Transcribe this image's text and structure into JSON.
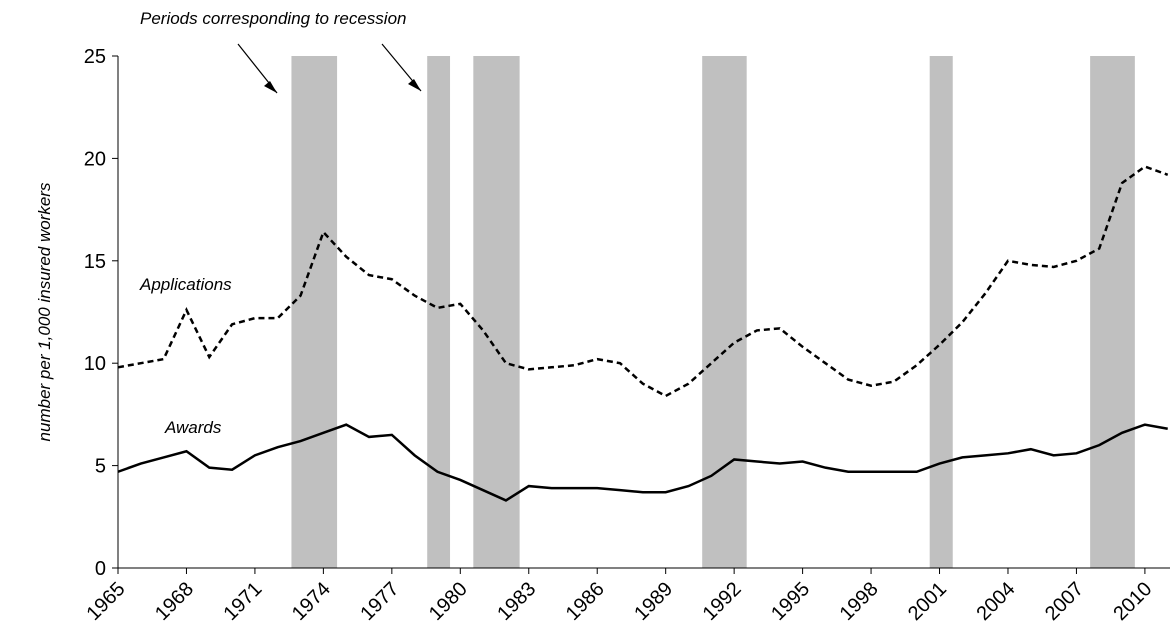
{
  "chart_data": {
    "type": "line",
    "annotation": "Periods corresponding to recession",
    "y_label": "number per 1,000 insured workers",
    "x": [
      1965,
      1966,
      1967,
      1968,
      1969,
      1970,
      1971,
      1972,
      1973,
      1974,
      1975,
      1976,
      1977,
      1978,
      1979,
      1980,
      1981,
      1982,
      1983,
      1984,
      1985,
      1986,
      1987,
      1988,
      1989,
      1990,
      1991,
      1992,
      1993,
      1994,
      1995,
      1996,
      1997,
      1998,
      1999,
      2000,
      2001,
      2002,
      2003,
      2004,
      2005,
      2006,
      2007,
      2008,
      2009,
      2010,
      2011
    ],
    "series": [
      {
        "name": "Applications",
        "color": "#000000",
        "line_style": "dashed",
        "values": [
          9.8,
          10.0,
          10.2,
          12.6,
          10.3,
          11.9,
          12.2,
          12.2,
          13.3,
          16.4,
          15.2,
          14.3,
          14.1,
          13.3,
          12.7,
          12.9,
          11.6,
          10.0,
          9.7,
          9.8,
          9.9,
          10.2,
          10.0,
          9.0,
          8.4,
          9.0,
          10.0,
          11.0,
          11.6,
          11.7,
          10.8,
          10.0,
          9.2,
          8.9,
          9.1,
          9.9,
          10.9,
          12.0,
          13.4,
          15.0,
          14.8,
          14.7,
          15.0,
          15.6,
          18.8,
          19.6,
          19.2
        ]
      },
      {
        "name": "Awards",
        "color": "#000000",
        "line_style": "solid",
        "values": [
          4.7,
          5.1,
          5.4,
          5.7,
          4.9,
          4.8,
          5.5,
          5.9,
          6.2,
          6.6,
          7.0,
          6.4,
          6.5,
          5.5,
          4.7,
          4.3,
          3.8,
          3.3,
          4.0,
          3.9,
          3.9,
          3.9,
          3.8,
          3.7,
          3.7,
          4.0,
          4.5,
          5.3,
          5.2,
          5.1,
          5.2,
          4.9,
          4.7,
          4.7,
          4.7,
          4.7,
          5.1,
          5.4,
          5.5,
          5.6,
          5.8,
          5.5,
          5.6,
          6.0,
          6.6,
          7.0,
          6.8
        ]
      }
    ],
    "recessions": [
      [
        1972.6,
        1974.6
      ],
      [
        1978.55,
        1979.55
      ],
      [
        1980.57,
        1982.6
      ],
      [
        1990.6,
        1992.55
      ],
      [
        2000.57,
        2001.58
      ],
      [
        2007.6,
        2009.56
      ]
    ],
    "recession_color": "#c0c0c0",
    "xlim": [
      1965,
      2011.1
    ],
    "xticks": [
      1965,
      1968,
      1971,
      1974,
      1977,
      1980,
      1983,
      1986,
      1989,
      1992,
      1995,
      1998,
      2001,
      2004,
      2007,
      2010
    ],
    "ylim": [
      0,
      25
    ],
    "yticks": [
      0,
      5,
      10,
      15,
      20,
      25
    ],
    "grid": false
  }
}
